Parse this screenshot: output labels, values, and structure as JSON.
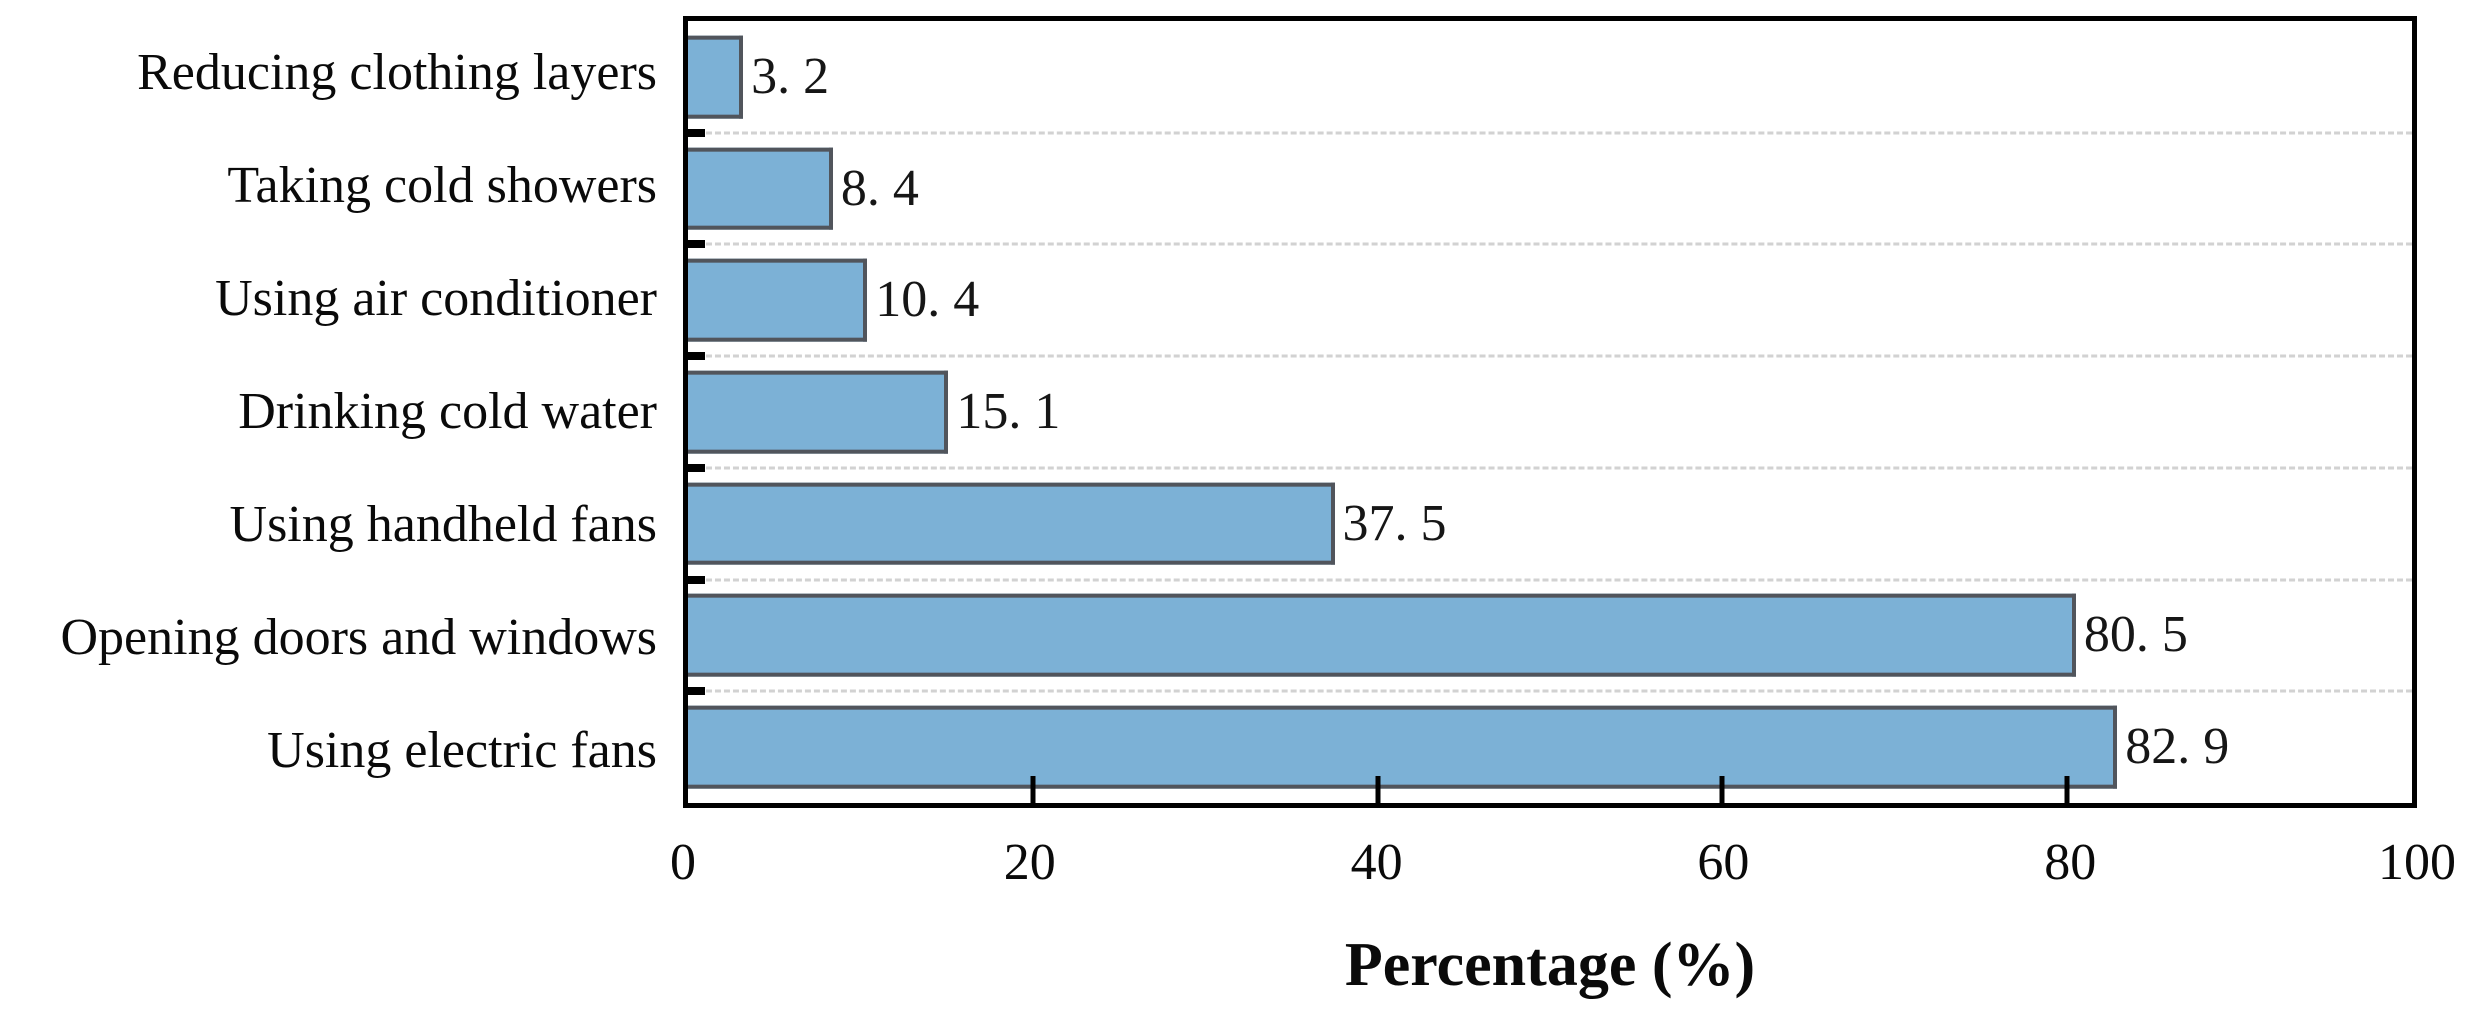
{
  "chart_data": {
    "type": "bar",
    "orientation": "horizontal",
    "title": "",
    "xlabel": "Percentage (%)",
    "ylabel": "",
    "categories": [
      "Reducing clothing layers",
      "Taking cold showers",
      "Using air conditioner",
      "Drinking cold water",
      "Using handheld fans",
      "Opening doors and windows",
      "Using electric fans"
    ],
    "values": [
      3.2,
      8.4,
      10.4,
      15.1,
      37.5,
      80.5,
      82.9
    ],
    "value_labels": [
      "3. 2",
      "8. 4",
      "10. 4",
      "15. 1",
      "37. 5",
      "80. 5",
      "82. 9"
    ],
    "xlim": [
      0,
      100
    ],
    "x_ticks": [
      0,
      20,
      40,
      60,
      80,
      100
    ],
    "x_tick_labels": [
      "0",
      "20",
      "40",
      "60",
      "80",
      "100"
    ],
    "grid": "horizontal dashed lines between category rows",
    "legend": "none",
    "colors": {
      "bar_fill": "#7cb1d6",
      "bar_border": "#51555c",
      "gridline": "#d2d2d2",
      "axis_spine": "#000000",
      "text": "#0a0a0a",
      "background": "#ffffff"
    }
  }
}
